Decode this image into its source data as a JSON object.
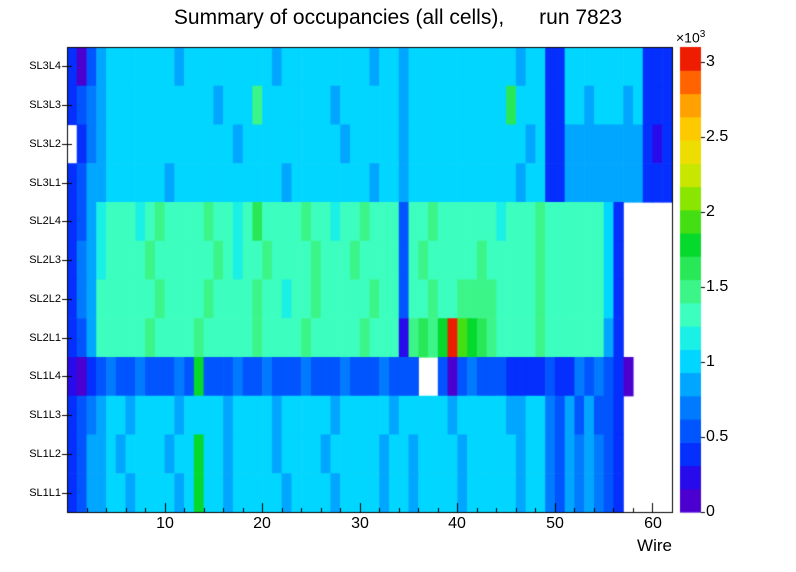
{
  "title": "Summary of occupancies (all cells),      run 7823",
  "chart_data": {
    "type": "heatmap",
    "title": "Summary of occupancies (all cells),      run 7823",
    "xlabel": "Wire",
    "x_range": [
      0,
      62
    ],
    "x_ticks": [
      10,
      20,
      30,
      40,
      50,
      60
    ],
    "grid": false,
    "colorbar": {
      "min": 0,
      "max": 3100,
      "levels": 20,
      "tick_labels": [
        "0",
        "0.5",
        "1",
        "1.5",
        "2",
        "2.5",
        "3"
      ],
      "tick_values": [
        0,
        500,
        1000,
        1500,
        2000,
        2500,
        3000
      ],
      "exp_base": "×10",
      "exp_power": "3",
      "palette_stops": [
        [
          0.0,
          [
            92,
            0,
            190
          ]
        ],
        [
          0.06,
          [
            51,
            0,
            230
          ]
        ],
        [
          0.13,
          [
            0,
            51,
            255
          ]
        ],
        [
          0.22,
          [
            0,
            119,
            255
          ]
        ],
        [
          0.28,
          [
            0,
            170,
            255
          ]
        ],
        [
          0.34,
          [
            0,
            229,
            255
          ]
        ],
        [
          0.42,
          [
            60,
            255,
            195
          ]
        ],
        [
          0.5,
          [
            60,
            240,
            110
          ]
        ],
        [
          0.58,
          [
            0,
            215,
            40
          ]
        ],
        [
          0.66,
          [
            120,
            230,
            0
          ]
        ],
        [
          0.75,
          [
            230,
            230,
            0
          ]
        ],
        [
          0.83,
          [
            255,
            200,
            0
          ]
        ],
        [
          0.9,
          [
            255,
            140,
            0
          ]
        ],
        [
          0.96,
          [
            255,
            45,
            0
          ]
        ],
        [
          1.0,
          [
            210,
            0,
            0
          ]
        ]
      ]
    },
    "rows": [
      {
        "label": "SL3L4",
        "values": [
          400,
          150,
          600,
          850,
          1000,
          1000,
          950,
          1000,
          1050,
          1000,
          1000,
          900,
          1000,
          1000,
          1050,
          1000,
          950,
          1000,
          1000,
          1050,
          1000,
          900,
          1050,
          1000,
          1000,
          1050,
          1000,
          950,
          1000,
          1000,
          1000,
          900,
          1000,
          1050,
          850,
          1000,
          1000,
          1050,
          1000,
          1000,
          950,
          1000,
          1000,
          1000,
          1050,
          1000,
          900,
          1000,
          1000,
          400,
          350,
          1000,
          1000,
          950,
          1000,
          1050,
          1000,
          1000,
          950,
          400,
          350,
          400
        ]
      },
      {
        "label": "SL3L3",
        "values": [
          350,
          500,
          700,
          900,
          1000,
          950,
          1000,
          1050,
          1000,
          1000,
          950,
          1000,
          1050,
          1000,
          1000,
          900,
          1000,
          1000,
          1050,
          1500,
          1000,
          1000,
          950,
          1000,
          1050,
          1000,
          1000,
          900,
          1000,
          1000,
          1050,
          1000,
          950,
          1000,
          850,
          1000,
          1000,
          1000,
          1050,
          1000,
          1000,
          950,
          1000,
          1000,
          1000,
          1550,
          1000,
          950,
          1000,
          400,
          380,
          1000,
          950,
          900,
          950,
          1000,
          950,
          900,
          950,
          400,
          350,
          400
        ]
      },
      {
        "label": "SL3L2",
        "values": [
          0,
          400,
          700,
          850,
          1000,
          1000,
          950,
          1000,
          1000,
          1050,
          1000,
          950,
          1000,
          1000,
          1000,
          1050,
          1000,
          900,
          1000,
          1000,
          1050,
          1000,
          1000,
          950,
          1000,
          1000,
          1050,
          1000,
          900,
          1000,
          1000,
          1000,
          950,
          1000,
          850,
          1000,
          1050,
          1000,
          1000,
          950,
          1000,
          1000,
          1050,
          1000,
          1000,
          950,
          1000,
          900,
          1000,
          400,
          380,
          850,
          850,
          820,
          850,
          880,
          850,
          820,
          850,
          400,
          300,
          350
        ]
      },
      {
        "label": "SL3L1",
        "values": [
          400,
          600,
          800,
          900,
          1000,
          950,
          1000,
          1000,
          1050,
          1000,
          900,
          1000,
          1000,
          1050,
          1000,
          1000,
          950,
          1000,
          1000,
          1000,
          1050,
          1000,
          900,
          1000,
          1000,
          1000,
          1050,
          950,
          1000,
          1000,
          1000,
          900,
          1000,
          1000,
          850,
          1000,
          1000,
          1050,
          1000,
          1000,
          950,
          1000,
          1000,
          1050,
          1000,
          1000,
          900,
          1000,
          1000,
          420,
          380,
          820,
          850,
          820,
          800,
          850,
          820,
          850,
          820,
          400,
          350,
          380
        ]
      },
      {
        "label": "SL2L4",
        "values": [
          450,
          600,
          800,
          1200,
          1350,
          1300,
          1350,
          1200,
          1350,
          1400,
          1350,
          1300,
          1350,
          1350,
          1400,
          1350,
          1300,
          1200,
          1350,
          1550,
          1350,
          1350,
          1300,
          1350,
          1400,
          1350,
          1350,
          1200,
          1350,
          1350,
          1400,
          1350,
          1300,
          1350,
          600,
          1350,
          1350,
          1400,
          1350,
          1350,
          1300,
          1350,
          1350,
          1350,
          1200,
          1350,
          1250,
          1350,
          1400,
          1350,
          1300,
          1350,
          1350,
          1300,
          1350,
          1000,
          450,
          0,
          0,
          0,
          0,
          0
        ]
      },
      {
        "label": "SL2L3",
        "values": [
          400,
          650,
          850,
          1200,
          1350,
          1350,
          1300,
          1350,
          1400,
          1350,
          1350,
          1300,
          1350,
          1350,
          1350,
          1400,
          1350,
          1200,
          1350,
          1350,
          1400,
          1350,
          1300,
          1350,
          1350,
          1500,
          1350,
          1300,
          1350,
          1400,
          1350,
          1350,
          1300,
          1350,
          600,
          1350,
          1400,
          1350,
          1350,
          1300,
          1350,
          1350,
          1400,
          1350,
          1350,
          1300,
          1350,
          1350,
          1400,
          1350,
          1300,
          1350,
          1350,
          1350,
          1300,
          1000,
          420,
          0,
          0,
          0,
          0,
          0
        ]
      },
      {
        "label": "SL2L2",
        "values": [
          450,
          700,
          900,
          1250,
          1330,
          1350,
          1300,
          1350,
          1350,
          1400,
          1350,
          1300,
          1350,
          1350,
          1400,
          1350,
          1300,
          1350,
          1350,
          1400,
          1350,
          1350,
          1200,
          1350,
          1350,
          1400,
          1350,
          1300,
          1350,
          1350,
          1350,
          1400,
          1300,
          1350,
          600,
          1350,
          1350,
          1400,
          1350,
          1350,
          1500,
          1500,
          1450,
          1400,
          1350,
          1300,
          1350,
          1350,
          1400,
          1350,
          1350,
          1300,
          1350,
          1350,
          1300,
          950,
          400,
          0,
          0,
          0,
          0,
          0
        ]
      },
      {
        "label": "SL2L1",
        "values": [
          350,
          600,
          900,
          1250,
          1300,
          1350,
          1300,
          1350,
          1400,
          1350,
          1300,
          1350,
          1350,
          1400,
          1350,
          1350,
          1300,
          1350,
          1350,
          1400,
          1350,
          1300,
          1350,
          1350,
          1400,
          1350,
          1350,
          1300,
          1350,
          1350,
          1400,
          1350,
          1300,
          1350,
          250,
          1450,
          1550,
          1500,
          1800,
          3050,
          1900,
          1800,
          1650,
          1500,
          1350,
          1300,
          1350,
          1350,
          1400,
          1350,
          1300,
          1350,
          1350,
          1300,
          1350,
          900,
          380,
          0,
          0,
          0,
          0,
          0
        ]
      },
      {
        "label": "SL1L4",
        "values": [
          300,
          150,
          450,
          600,
          620,
          580,
          600,
          650,
          600,
          550,
          600,
          650,
          600,
          1800,
          600,
          550,
          600,
          620,
          580,
          600,
          650,
          600,
          580,
          600,
          620,
          600,
          550,
          600,
          630,
          600,
          580,
          600,
          650,
          600,
          550,
          600,
          0,
          0,
          550,
          150,
          600,
          620,
          600,
          580,
          500,
          450,
          420,
          450,
          350,
          600,
          400,
          450,
          650,
          550,
          700,
          600,
          350,
          120,
          0,
          0,
          0,
          0
        ]
      },
      {
        "label": "SL1L3",
        "values": [
          400,
          550,
          750,
          900,
          950,
          950,
          900,
          950,
          1000,
          950,
          950,
          850,
          950,
          950,
          1000,
          950,
          900,
          950,
          950,
          1000,
          950,
          850,
          950,
          950,
          950,
          1000,
          950,
          900,
          950,
          950,
          1000,
          950,
          950,
          850,
          950,
          950,
          1000,
          950,
          950,
          900,
          950,
          950,
          1000,
          950,
          950,
          900,
          850,
          950,
          950,
          700,
          500,
          800,
          600,
          850,
          600,
          500,
          400,
          0,
          0,
          0,
          0,
          0
        ]
      },
      {
        "label": "SL1L2",
        "values": [
          380,
          550,
          800,
          900,
          950,
          900,
          950,
          950,
          1000,
          950,
          850,
          950,
          950,
          1850,
          950,
          950,
          900,
          950,
          1000,
          950,
          950,
          850,
          950,
          950,
          1000,
          950,
          900,
          950,
          950,
          950,
          1000,
          950,
          850,
          950,
          950,
          900,
          950,
          1000,
          950,
          950,
          900,
          950,
          950,
          950,
          1000,
          950,
          850,
          950,
          950,
          750,
          550,
          800,
          650,
          850,
          650,
          500,
          400,
          0,
          0,
          0,
          0,
          0
        ]
      },
      {
        "label": "SL1L1",
        "values": [
          400,
          600,
          800,
          900,
          950,
          950,
          900,
          950,
          950,
          1000,
          950,
          900,
          950,
          1850,
          950,
          950,
          900,
          950,
          950,
          1000,
          950,
          950,
          850,
          950,
          950,
          1000,
          950,
          900,
          950,
          950,
          950,
          1000,
          850,
          950,
          950,
          900,
          950,
          950,
          1000,
          950,
          900,
          950,
          950,
          950,
          1000,
          950,
          900,
          950,
          950,
          750,
          550,
          800,
          650,
          850,
          650,
          500,
          400,
          0,
          0,
          0,
          0,
          0
        ]
      }
    ]
  }
}
